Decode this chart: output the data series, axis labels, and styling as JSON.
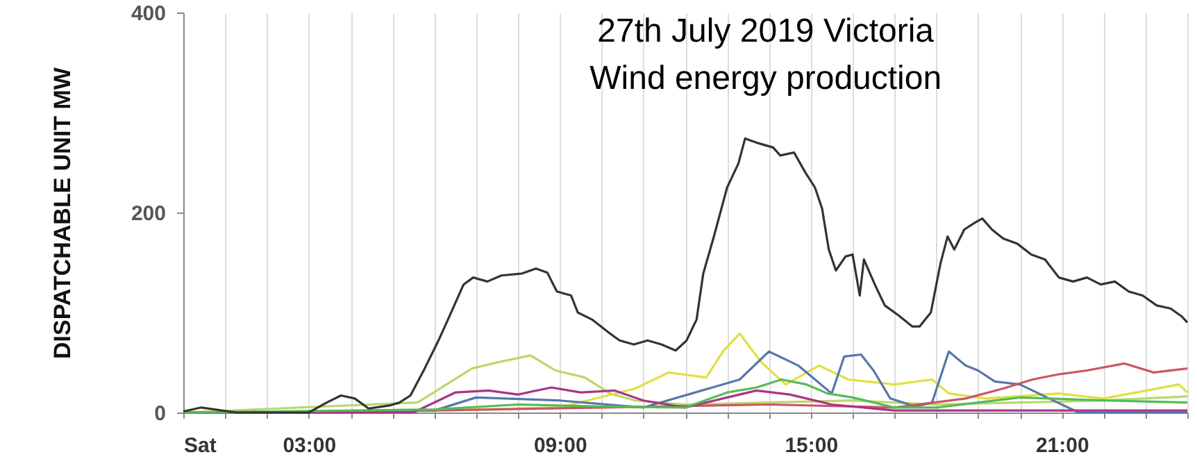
{
  "chart_data": {
    "type": "line",
    "title": "27th July 2019 Victoria\nWind energy production",
    "ylabel": "DISPATCHABLE UNIT MW",
    "xlim": [
      0,
      24
    ],
    "ylim": [
      0,
      400
    ],
    "yticks": [
      0,
      200,
      400
    ],
    "xticks": [
      {
        "value": 0,
        "label": "Sat"
      },
      {
        "value": 1,
        "label": null
      },
      {
        "value": 2,
        "label": null
      },
      {
        "value": 3,
        "label": "03:00"
      },
      {
        "value": 4,
        "label": null
      },
      {
        "value": 5,
        "label": null
      },
      {
        "value": 6,
        "label": null
      },
      {
        "value": 7,
        "label": null
      },
      {
        "value": 8,
        "label": null
      },
      {
        "value": 9,
        "label": "09:00"
      },
      {
        "value": 10,
        "label": null
      },
      {
        "value": 11,
        "label": null
      },
      {
        "value": 12,
        "label": null
      },
      {
        "value": 13,
        "label": null
      },
      {
        "value": 14,
        "label": null
      },
      {
        "value": 15,
        "label": "15:00"
      },
      {
        "value": 16,
        "label": null
      },
      {
        "value": 17,
        "label": null
      },
      {
        "value": 18,
        "label": null
      },
      {
        "value": 19,
        "label": null
      },
      {
        "value": 20,
        "label": null
      },
      {
        "value": 21,
        "label": "21:00"
      },
      {
        "value": 22,
        "label": null
      },
      {
        "value": 23,
        "label": null
      },
      {
        "value": 24,
        "label": null
      }
    ],
    "grid": "x",
    "marker": "none",
    "line_style": "solid",
    "series": [
      {
        "color": "#b8d86b",
        "x": [
          0,
          5.6,
          6.9,
          7.6,
          8.3,
          8.9,
          9.6,
          10.2,
          10.8,
          12,
          14,
          16,
          18,
          20,
          22,
          24
        ],
        "values": [
          0,
          10,
          44,
          51,
          57,
          42,
          35,
          19,
          12,
          8,
          10,
          12,
          8,
          10,
          12,
          16
        ]
      },
      {
        "color": "#e0e040",
        "x": [
          0,
          6,
          9,
          10.8,
          11.6,
          12.5,
          12.9,
          13.3,
          13.8,
          14.4,
          15.2,
          15.9,
          17,
          17.9,
          18.3,
          19.2,
          20.9,
          22,
          23.8,
          24
        ],
        "values": [
          0,
          2,
          5,
          24,
          40,
          35,
          61,
          79,
          51,
          28,
          47,
          33,
          28,
          33,
          19,
          14,
          19,
          14,
          28,
          20
        ]
      },
      {
        "color": "#5577aa",
        "x": [
          0,
          6,
          7,
          9,
          11,
          13.3,
          14,
          14.7,
          15.5,
          15.8,
          16.2,
          16.5,
          16.9,
          17.5,
          17.9,
          18.3,
          18.7,
          19,
          19.4,
          20,
          20.9,
          21.4,
          24
        ],
        "values": [
          0,
          2,
          15,
          12,
          5,
          33,
          61,
          47,
          19,
          56,
          58,
          42,
          14,
          6,
          10,
          61,
          47,
          42,
          31,
          28,
          10,
          0,
          0
        ]
      },
      {
        "color": "#cc5566",
        "x": [
          0,
          6,
          10,
          14,
          17,
          18.7,
          19.6,
          20.3,
          20.9,
          21.6,
          22.5,
          23.2,
          24
        ],
        "values": [
          0,
          2,
          5,
          8,
          5,
          14,
          24,
          33,
          38,
          42,
          49,
          40,
          44
        ]
      },
      {
        "color": "#aa3388",
        "x": [
          0,
          5.5,
          6.5,
          7.3,
          8,
          8.8,
          9.5,
          10.3,
          11,
          12,
          13,
          13.7,
          14.5,
          15.5,
          17,
          24
        ],
        "values": [
          0,
          0,
          20,
          22,
          18,
          25,
          20,
          22,
          12,
          5,
          15,
          22,
          18,
          8,
          2,
          2
        ]
      },
      {
        "color": "#55bb55",
        "x": [
          0,
          6,
          8,
          10,
          12,
          13,
          13.7,
          14.3,
          14.9,
          15.4,
          16,
          17,
          18,
          20,
          22,
          24
        ],
        "values": [
          0,
          3,
          8,
          6,
          5,
          20,
          25,
          33,
          28,
          19,
          15,
          5,
          5,
          15,
          12,
          10
        ]
      },
      {
        "color": "#333333",
        "x": [
          0,
          0.43,
          1.27,
          2.1,
          2.77,
          3.0,
          3.43,
          3.77,
          4.1,
          4.43,
          4.93,
          5.17,
          5.43,
          5.77,
          6.1,
          6.37,
          6.7,
          6.93,
          7.27,
          7.6,
          8.1,
          8.43,
          8.7,
          8.93,
          9.27,
          9.43,
          9.77,
          10.2,
          10.43,
          10.77,
          11.1,
          11.43,
          11.77,
          12.03,
          12.27,
          12.43,
          12.67,
          13.0,
          13.27,
          13.43,
          13.77,
          14.1,
          14.27,
          14.6,
          14.87,
          15.1,
          15.27,
          15.43,
          15.6,
          15.83,
          16.0,
          16.17,
          16.27,
          16.53,
          16.77,
          17.1,
          17.43,
          17.6,
          17.87,
          18.1,
          18.27,
          18.43,
          18.67,
          18.93,
          19.1,
          19.33,
          19.6,
          19.93,
          20.27,
          20.6,
          20.93,
          21.27,
          21.6,
          21.93,
          22.27,
          22.6,
          22.93,
          23.27,
          23.6,
          23.87,
          24.0
        ],
        "values": [
          1,
          5,
          0,
          0,
          0,
          0,
          10,
          17,
          14,
          4,
          7,
          10,
          17,
          44,
          72,
          97,
          128,
          135,
          131,
          137,
          139,
          144,
          140,
          121,
          117,
          100,
          93,
          79,
          72,
          68,
          72,
          68,
          62,
          72,
          93,
          139,
          174,
          225,
          249,
          274,
          269,
          265,
          257,
          260,
          240,
          225,
          204,
          163,
          142,
          156,
          158,
          117,
          153,
          128,
          107,
          97,
          86,
          86,
          100,
          149,
          176,
          163,
          183,
          190,
          194,
          183,
          174,
          169,
          158,
          153,
          135,
          131,
          135,
          128,
          131,
          121,
          117,
          107,
          104,
          96,
          90
        ]
      }
    ]
  }
}
